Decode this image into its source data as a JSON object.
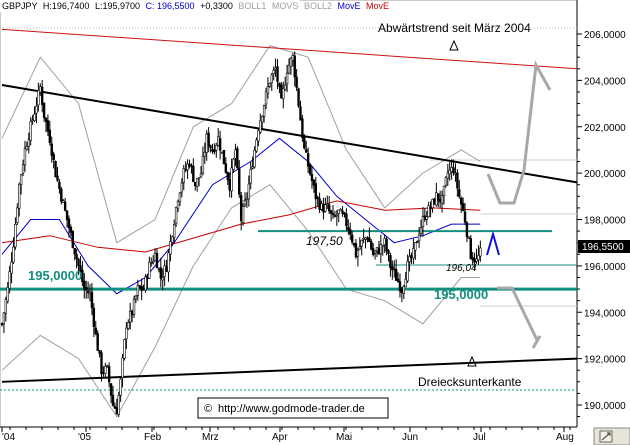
{
  "header": {
    "symbol": "GBPJPY",
    "high_label": "H:196,7400",
    "low_label": "L:195,9700",
    "close_label": "C: 196,5500",
    "change_label": "+0,3300",
    "ind1": "BOLL1",
    "ind2": "MOVS",
    "ind3": "BOLL2",
    "ind4": "MovE",
    "ind5": "MovE"
  },
  "annotations": {
    "trend_title": "Abwärtstrend seit März 2004",
    "triangle_bottom": "Dreiecksunterkante",
    "level_195_left": "195,0000",
    "level_195_right": "195,0000",
    "level_197": "197,50",
    "level_196": "196,04",
    "last_price": "196,5500",
    "watermark": "http://www.godmode-trader.de",
    "copyright_symbol": "©"
  },
  "colors": {
    "up_candle": "#000000",
    "down_candle": "#000000",
    "boll": "#a0a0a0",
    "movs": "#0000c8",
    "move_red": "#c80000",
    "trend_red": "#d01010",
    "level_teal": "#138f7f",
    "projection_gray": "#a8a8a8",
    "projection_blue": "#1010e0"
  },
  "chart_data": {
    "type": "candlestick",
    "title": "",
    "xlabel": "",
    "ylabel": "",
    "ylim": [
      189.0,
      207.0
    ],
    "y_ticks": [
      "206,0000",
      "204,0000",
      "202,0000",
      "200,0000",
      "198,0000",
      "196,0000",
      "194,0000",
      "192,0000",
      "190,0000"
    ],
    "x_ticks": [
      "'04",
      "'05",
      "Feb",
      "Mrz",
      "Apr",
      "Mai",
      "Jun",
      "Jul",
      "Aug"
    ],
    "grid": false,
    "last_value": 196.55,
    "horizontal_levels": [
      195.0,
      197.5,
      196.04
    ],
    "price_path": [
      [
        0,
        193.5
      ],
      [
        3,
        195
      ],
      [
        6,
        197
      ],
      [
        9,
        199.5
      ],
      [
        12,
        201
      ],
      [
        15,
        202
      ],
      [
        18,
        203
      ],
      [
        20,
        203.7
      ],
      [
        22,
        202.5
      ],
      [
        25,
        201.5
      ],
      [
        28,
        200
      ],
      [
        31,
        199
      ],
      [
        34,
        198
      ],
      [
        37,
        197
      ],
      [
        40,
        196
      ],
      [
        43,
        195
      ],
      [
        46,
        194.8
      ],
      [
        49,
        193
      ],
      [
        52,
        191.5
      ],
      [
        55,
        191.5
      ],
      [
        58,
        190
      ],
      [
        60,
        189.8
      ],
      [
        62,
        191
      ],
      [
        65,
        193.5
      ],
      [
        68,
        194
      ],
      [
        71,
        195
      ],
      [
        74,
        195
      ],
      [
        77,
        196
      ],
      [
        80,
        196.5
      ],
      [
        83,
        195.5
      ],
      [
        86,
        196
      ],
      [
        89,
        197.5
      ],
      [
        92,
        199
      ],
      [
        95,
        200
      ],
      [
        98,
        200.5
      ],
      [
        101,
        199.5
      ],
      [
        104,
        200
      ],
      [
        107,
        201.5
      ],
      [
        110,
        201
      ],
      [
        113,
        201.5
      ],
      [
        116,
        200.5
      ],
      [
        119,
        199.5
      ],
      [
        122,
        201
      ],
      [
        125,
        198
      ],
      [
        128,
        199
      ],
      [
        131,
        200.5
      ],
      [
        134,
        202
      ],
      [
        137,
        203
      ],
      [
        140,
        204
      ],
      [
        143,
        204.5
      ],
      [
        146,
        203
      ],
      [
        149,
        204.5
      ],
      [
        152,
        205
      ],
      [
        155,
        203
      ],
      [
        158,
        201
      ],
      [
        161,
        200
      ],
      [
        164,
        199
      ],
      [
        167,
        198.5
      ],
      [
        170,
        198.5
      ],
      [
        173,
        198
      ],
      [
        176,
        198.3
      ],
      [
        179,
        198
      ],
      [
        182,
        197.5
      ],
      [
        185,
        196.5
      ],
      [
        188,
        197
      ],
      [
        191,
        197.3
      ],
      [
        194,
        196.5
      ],
      [
        197,
        196.7
      ],
      [
        200,
        197
      ],
      [
        203,
        196
      ],
      [
        206,
        195.5
      ],
      [
        209,
        195
      ],
      [
        212,
        196
      ],
      [
        215,
        196.5
      ],
      [
        218,
        197.5
      ],
      [
        221,
        198.2
      ],
      [
        224,
        198.5
      ],
      [
        227,
        199
      ],
      [
        230,
        198.8
      ],
      [
        233,
        200
      ],
      [
        236,
        200.2
      ],
      [
        239,
        199
      ],
      [
        242,
        198
      ],
      [
        245,
        196.5
      ],
      [
        248,
        196.2
      ],
      [
        250,
        196.55
      ]
    ],
    "series": [
      {
        "name": "BOLL1",
        "type": "line",
        "values": [
          [
            0,
            201.5
          ],
          [
            20,
            205
          ],
          [
            40,
            203
          ],
          [
            60,
            197
          ],
          [
            80,
            198
          ],
          [
            100,
            202
          ],
          [
            120,
            203
          ],
          [
            140,
            205.5
          ],
          [
            160,
            205
          ],
          [
            180,
            201
          ],
          [
            200,
            198.5
          ],
          [
            220,
            200
          ],
          [
            240,
            201
          ],
          [
            250,
            200.5
          ]
        ]
      },
      {
        "name": "BOLL2",
        "type": "line",
        "values": [
          [
            0,
            191.5
          ],
          [
            20,
            193
          ],
          [
            40,
            192
          ],
          [
            60,
            189.5
          ],
          [
            80,
            192.5
          ],
          [
            100,
            196
          ],
          [
            120,
            198.5
          ],
          [
            140,
            199.5
          ],
          [
            160,
            197.5
          ],
          [
            180,
            195
          ],
          [
            200,
            194.5
          ],
          [
            220,
            193.5
          ],
          [
            240,
            195.5
          ],
          [
            250,
            195.5
          ]
        ]
      },
      {
        "name": "MOVS",
        "type": "line",
        "values": [
          [
            0,
            196.5
          ],
          [
            15,
            198
          ],
          [
            30,
            198
          ],
          [
            45,
            196
          ],
          [
            60,
            194.8
          ],
          [
            75,
            195.5
          ],
          [
            90,
            197
          ],
          [
            110,
            199.5
          ],
          [
            130,
            200.5
          ],
          [
            145,
            201.5
          ],
          [
            160,
            200.5
          ],
          [
            175,
            199
          ],
          [
            190,
            198
          ],
          [
            205,
            197
          ],
          [
            220,
            197.3
          ],
          [
            235,
            197.8
          ],
          [
            250,
            197.8
          ]
        ]
      },
      {
        "name": "MovE",
        "type": "line",
        "values": [
          [
            0,
            197
          ],
          [
            25,
            197.3
          ],
          [
            50,
            196.8
          ],
          [
            75,
            196.6
          ],
          [
            100,
            197.2
          ],
          [
            125,
            197.8
          ],
          [
            150,
            198.2
          ],
          [
            175,
            198.8
          ],
          [
            200,
            198.4
          ],
          [
            225,
            198.5
          ],
          [
            250,
            198.4
          ]
        ]
      }
    ],
    "trend_lines": [
      {
        "name": "trend_red",
        "from": [
          0,
          206.2
        ],
        "to": [
          250,
          204.5
        ]
      },
      {
        "name": "trend_black_upper",
        "from": [
          0,
          203.8
        ],
        "to": [
          250,
          199.6
        ]
      },
      {
        "name": "trend_black_lower",
        "from": [
          0,
          191.0
        ],
        "to": [
          250,
          192.0
        ]
      }
    ]
  }
}
